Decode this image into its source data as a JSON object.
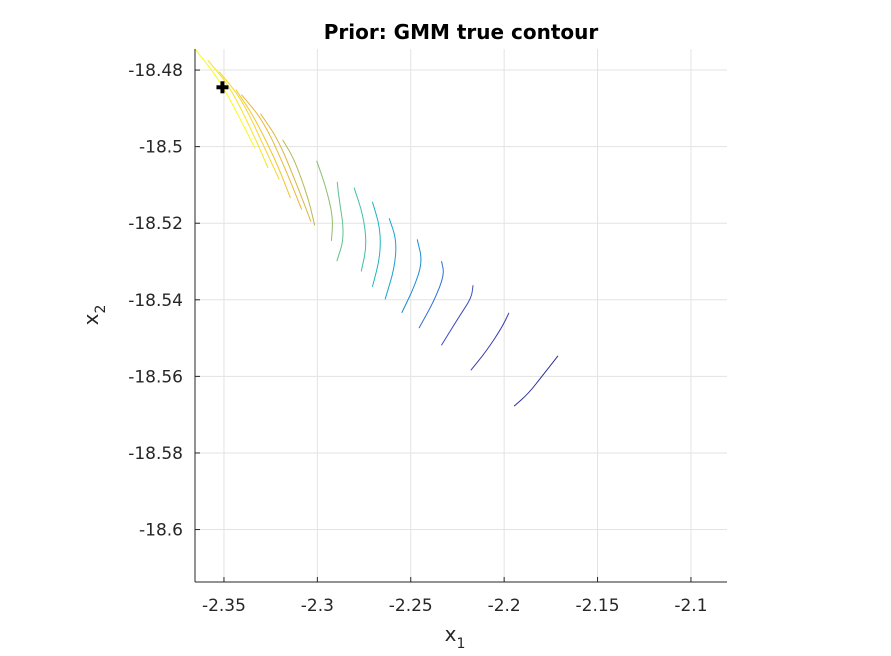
{
  "chart_data": {
    "type": "contour",
    "title": "Prior: GMM true contour",
    "xlabel": "x",
    "xlabel_sub": "1",
    "ylabel": "x",
    "ylabel_sub": "2",
    "xlim": [
      -2.3655,
      -2.0807
    ],
    "ylim": [
      -18.6137,
      -18.4745
    ],
    "xticks": [
      -2.35,
      -2.3,
      -2.25,
      -2.2,
      -2.15,
      -2.1
    ],
    "xtick_labels": [
      "-2.35",
      "-2.3",
      "-2.25",
      "-2.2",
      "-2.15",
      "-2.1"
    ],
    "yticks": [
      -18.48,
      -18.5,
      -18.52,
      -18.54,
      -18.56,
      -18.58,
      -18.6
    ],
    "ytick_labels": [
      "-18.48",
      "-18.5",
      "-18.52",
      "-18.54",
      "-18.56",
      "-18.58",
      "-18.6"
    ],
    "grid": true,
    "colormap": "parula",
    "colors": [
      "#352a87",
      "#0f5cdd",
      "#1481d6",
      "#06a4ca",
      "#2eb7a4",
      "#87bf77",
      "#d1bb59",
      "#fec832",
      "#f9fb0e"
    ],
    "contours": [
      {
        "level": 1,
        "color": "#2c2c97",
        "points": [
          [
            -2.1945,
            -18.5677
          ],
          [
            -2.187,
            -18.5645
          ],
          [
            -2.179,
            -18.5595
          ],
          [
            -2.1713,
            -18.5547
          ]
        ]
      },
      {
        "level": 2,
        "color": "#3a3ab0",
        "points": [
          [
            -2.2177,
            -18.5583
          ],
          [
            -2.2097,
            -18.5535
          ],
          [
            -2.2015,
            -18.5475
          ],
          [
            -2.1975,
            -18.5435
          ]
        ]
      },
      {
        "level": 3,
        "color": "#3b4cc0",
        "points": [
          [
            -2.2335,
            -18.5518
          ],
          [
            -2.2245,
            -18.5447
          ],
          [
            -2.2175,
            -18.5395
          ],
          [
            -2.2167,
            -18.5363
          ]
        ]
      },
      {
        "level": 4,
        "color": "#2f6fd8",
        "points": [
          [
            -2.2455,
            -18.5473
          ],
          [
            -2.2375,
            -18.5403
          ],
          [
            -2.232,
            -18.5335
          ],
          [
            -2.2335,
            -18.53
          ]
        ]
      },
      {
        "level": 5,
        "color": "#1a8ad6",
        "points": [
          [
            -2.2547,
            -18.5433
          ],
          [
            -2.248,
            -18.5365
          ],
          [
            -2.2437,
            -18.53
          ],
          [
            -2.2465,
            -18.5243
          ]
        ]
      },
      {
        "level": 6,
        "color": "#17a2cb",
        "points": [
          [
            -2.2637,
            -18.5398
          ],
          [
            -2.2587,
            -18.5318
          ],
          [
            -2.2575,
            -18.5245
          ],
          [
            -2.2615,
            -18.5188
          ]
        ]
      },
      {
        "level": 7,
        "color": "#20b4bf",
        "points": [
          [
            -2.2705,
            -18.5365
          ],
          [
            -2.2663,
            -18.5287
          ],
          [
            -2.2663,
            -18.5213
          ],
          [
            -2.2705,
            -18.5145
          ]
        ]
      },
      {
        "level": 8,
        "color": "#3cbfa6",
        "points": [
          [
            -2.2765,
            -18.5325
          ],
          [
            -2.2735,
            -18.5257
          ],
          [
            -2.2755,
            -18.5178
          ],
          [
            -2.2803,
            -18.5108
          ]
        ]
      },
      {
        "level": 9,
        "color": "#5fc18a",
        "points": [
          [
            -2.2895,
            -18.5298
          ],
          [
            -2.2853,
            -18.5233
          ],
          [
            -2.2887,
            -18.5125
          ],
          [
            -2.2893,
            -18.5093
          ]
        ]
      },
      {
        "level": 10,
        "color": "#8bbd6a",
        "points": [
          [
            -2.2925,
            -18.5245
          ],
          [
            -2.2915,
            -18.5185
          ],
          [
            -2.2955,
            -18.5105
          ],
          [
            -2.3003,
            -18.5038
          ]
        ]
      },
      {
        "level": 11,
        "color": "#b5b957",
        "points": [
          [
            -2.3015,
            -18.5205
          ],
          [
            -2.3045,
            -18.514
          ],
          [
            -2.3123,
            -18.5033
          ],
          [
            -2.3185,
            -18.4983
          ]
        ]
      },
      {
        "level": 12,
        "color": "#dcb43f",
        "points": [
          [
            -2.3035,
            -18.5195
          ],
          [
            -2.3097,
            -18.5115
          ],
          [
            -2.3205,
            -18.4985
          ],
          [
            -2.3303,
            -18.4915
          ]
        ]
      },
      {
        "level": 13,
        "color": "#e8b83a",
        "points": [
          [
            -2.3085,
            -18.5163
          ],
          [
            -2.3165,
            -18.5065
          ],
          [
            -2.3285,
            -18.4935
          ],
          [
            -2.3405,
            -18.4865
          ]
        ]
      },
      {
        "level": 14,
        "color": "#f2c32e",
        "points": [
          [
            -2.3145,
            -18.5133
          ],
          [
            -2.3215,
            -18.5045
          ],
          [
            -2.3335,
            -18.4925
          ],
          [
            -2.3435,
            -18.4852
          ]
        ]
      },
      {
        "level": 15,
        "color": "#f5d528",
        "points": [
          [
            -2.3205,
            -18.5085
          ],
          [
            -2.3285,
            -18.5
          ],
          [
            -2.3405,
            -18.4875
          ],
          [
            -2.3525,
            -18.4805
          ]
        ]
      },
      {
        "level": 16,
        "color": "#f7e41f",
        "points": [
          [
            -2.3265,
            -18.5055
          ],
          [
            -2.3335,
            -18.4975
          ],
          [
            -2.3465,
            -18.4845
          ],
          [
            -2.3585,
            -18.4775
          ]
        ]
      },
      {
        "level": 17,
        "color": "#f9fb0e",
        "points": [
          [
            -2.3335,
            -18.5003
          ],
          [
            -2.3405,
            -18.4935
          ],
          [
            -2.3525,
            -18.4825
          ],
          [
            -2.3655,
            -18.4745
          ]
        ]
      }
    ],
    "marker": {
      "x": -2.3508,
      "y": -18.4845,
      "color": "#000000",
      "symbol": "plus-bold"
    }
  }
}
